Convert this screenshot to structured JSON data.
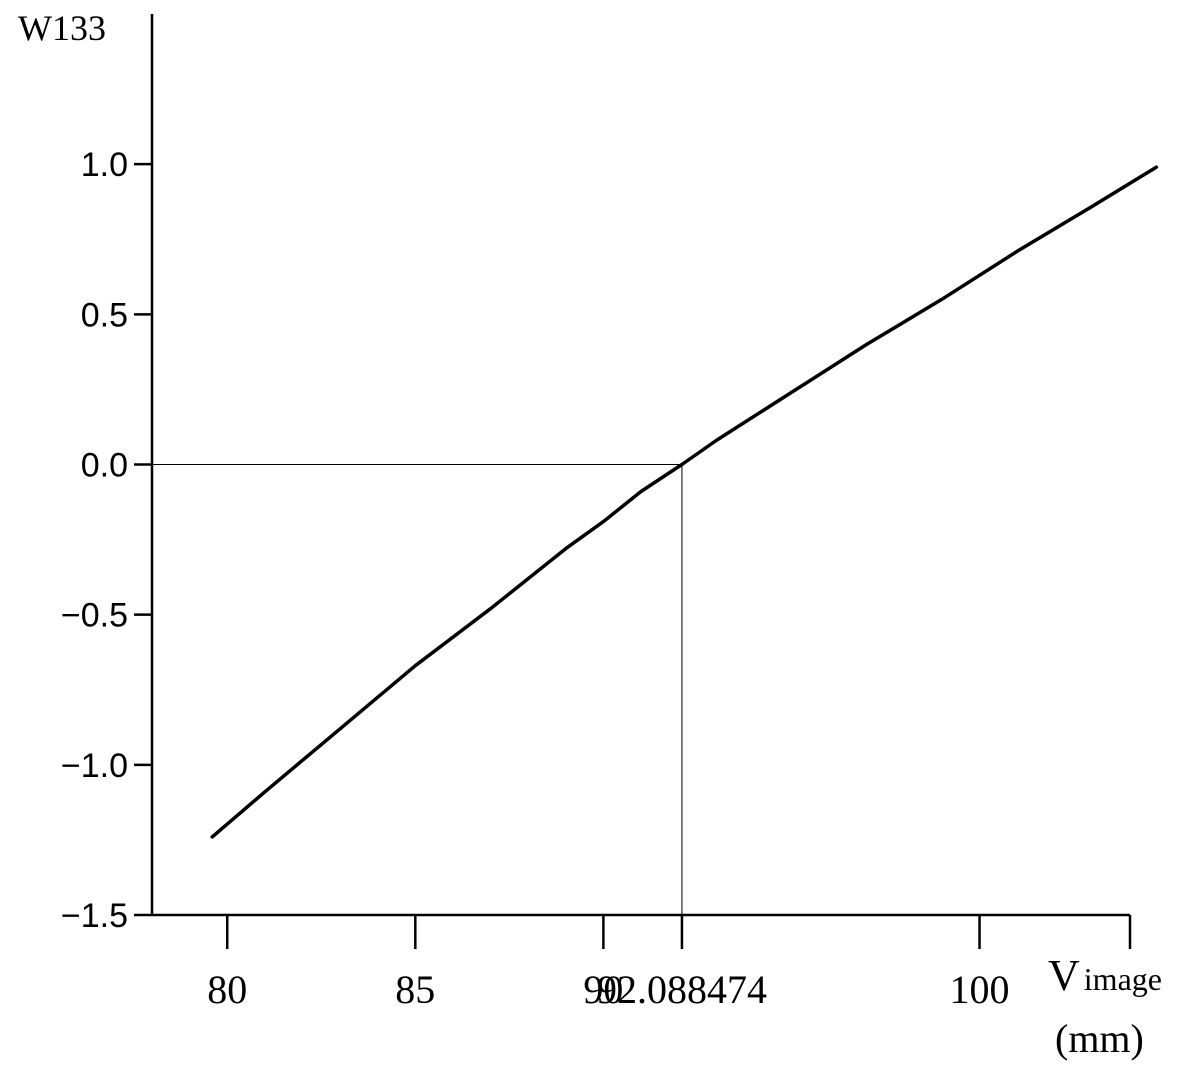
{
  "chart_data": {
    "type": "line",
    "ylabel": "W133",
    "xlabel_main": "V",
    "xlabel_sub": "image",
    "xlabel_unit": "(mm)",
    "xlim": [
      78,
      104
    ],
    "ylim": [
      -1.5,
      1.5
    ],
    "x_ticks": [
      {
        "value": 80,
        "label": "80"
      },
      {
        "value": 85,
        "label": "85"
      },
      {
        "value": 90,
        "label": "90"
      },
      {
        "value": 92.088474,
        "label": "92.088474"
      },
      {
        "value": 100,
        "label": "100"
      },
      {
        "value": 104,
        "label": ""
      }
    ],
    "y_ticks": [
      {
        "value": 1.0,
        "label": "1.0"
      },
      {
        "value": 0.5,
        "label": "0.5"
      },
      {
        "value": 0.0,
        "label": "0.0"
      },
      {
        "value": -0.5,
        "label": "−0.5"
      },
      {
        "value": -1.0,
        "label": "−1.0"
      },
      {
        "value": -1.5,
        "label": "−1.5"
      }
    ],
    "reference_point": {
      "x": 92.088474,
      "y": 0.0
    },
    "grid": false,
    "series": [
      {
        "x": [
          79.6,
          81,
          83,
          85,
          87,
          89,
          90,
          91,
          92.088474,
          93,
          95,
          97,
          99,
          101,
          103,
          104.7
        ],
        "y": [
          -1.24,
          -1.09,
          -0.88,
          -0.67,
          -0.48,
          -0.28,
          -0.19,
          -0.09,
          0.0,
          0.08,
          0.24,
          0.4,
          0.55,
          0.71,
          0.86,
          0.99
        ]
      }
    ]
  }
}
